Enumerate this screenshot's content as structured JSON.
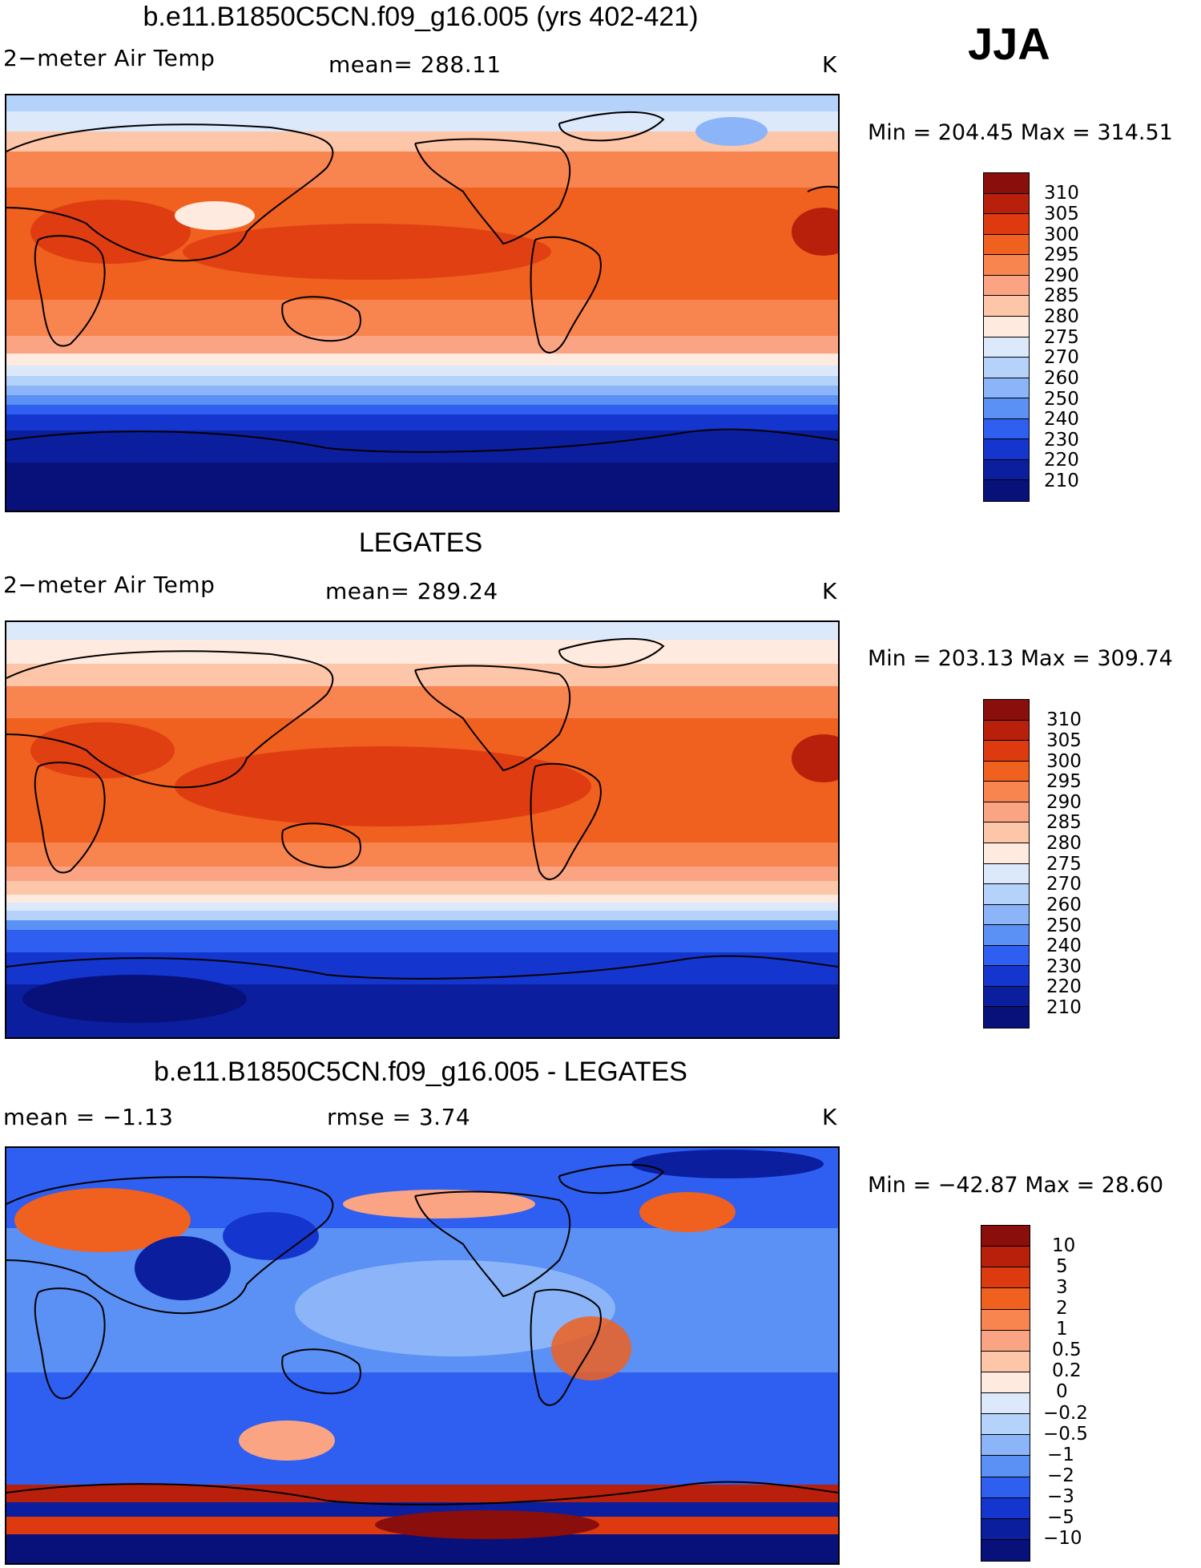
{
  "season": "JJA",
  "units": "K",
  "panels": [
    {
      "id": "model",
      "title": "b.e11.B1850C5CN.f09_g16.005 (yrs 402-421)",
      "left_label": "2−meter Air Temp",
      "center_label": "mean=  288.11",
      "right_label": "K",
      "minmax": "Min  =  204.45  Max  =  314.51",
      "colorbar": {
        "labels": [
          "310",
          "305",
          "300",
          "295",
          "290",
          "285",
          "280",
          "275",
          "270",
          "260",
          "250",
          "240",
          "230",
          "220",
          "210"
        ],
        "colors": [
          "#8a0e0b",
          "#b8200c",
          "#dd3a0f",
          "#f0601e",
          "#f88450",
          "#fba484",
          "#fdc6a9",
          "#feeadf",
          "#dce9fb",
          "#b5d2fb",
          "#8bb5f8",
          "#5b90f4",
          "#2f5ff0",
          "#1436ce",
          "#0b1e9e",
          "#08107a"
        ]
      }
    },
    {
      "id": "obs",
      "title": "LEGATES",
      "left_label": "2−meter Air Temp",
      "center_label": "mean=  289.24",
      "right_label": "K",
      "minmax": "Min  =  203.13  Max  =  309.74",
      "colorbar": {
        "labels": [
          "310",
          "305",
          "300",
          "295",
          "290",
          "285",
          "280",
          "275",
          "270",
          "260",
          "250",
          "240",
          "230",
          "220",
          "210"
        ],
        "colors": [
          "#8a0e0b",
          "#b8200c",
          "#dd3a0f",
          "#f0601e",
          "#f88450",
          "#fba484",
          "#fdc6a9",
          "#feeadf",
          "#dce9fb",
          "#b5d2fb",
          "#8bb5f8",
          "#5b90f4",
          "#2f5ff0",
          "#1436ce",
          "#0b1e9e",
          "#08107a"
        ]
      }
    },
    {
      "id": "diff",
      "title": "b.e11.B1850C5CN.f09_g16.005 - LEGATES",
      "left_label": "mean  =    −1.13",
      "center_label": "rmse  =     3.74",
      "right_label": "K",
      "minmax": "Min  =  −42.87  Max  =     28.60",
      "colorbar": {
        "labels": [
          "10",
          "5",
          "3",
          "2",
          "1",
          "0.5",
          "0.2",
          "0",
          "−0.2",
          "−0.5",
          "−1",
          "−2",
          "−3",
          "−5",
          "−10"
        ],
        "colors": [
          "#8a0e0b",
          "#b8200c",
          "#dd3a0f",
          "#f0601e",
          "#f88450",
          "#fba484",
          "#fdc6a9",
          "#feeadf",
          "#dce9fb",
          "#b5d2fb",
          "#8bb5f8",
          "#5b90f4",
          "#2f5ff0",
          "#1436ce",
          "#0b1e9e",
          "#08107a"
        ]
      }
    }
  ]
}
